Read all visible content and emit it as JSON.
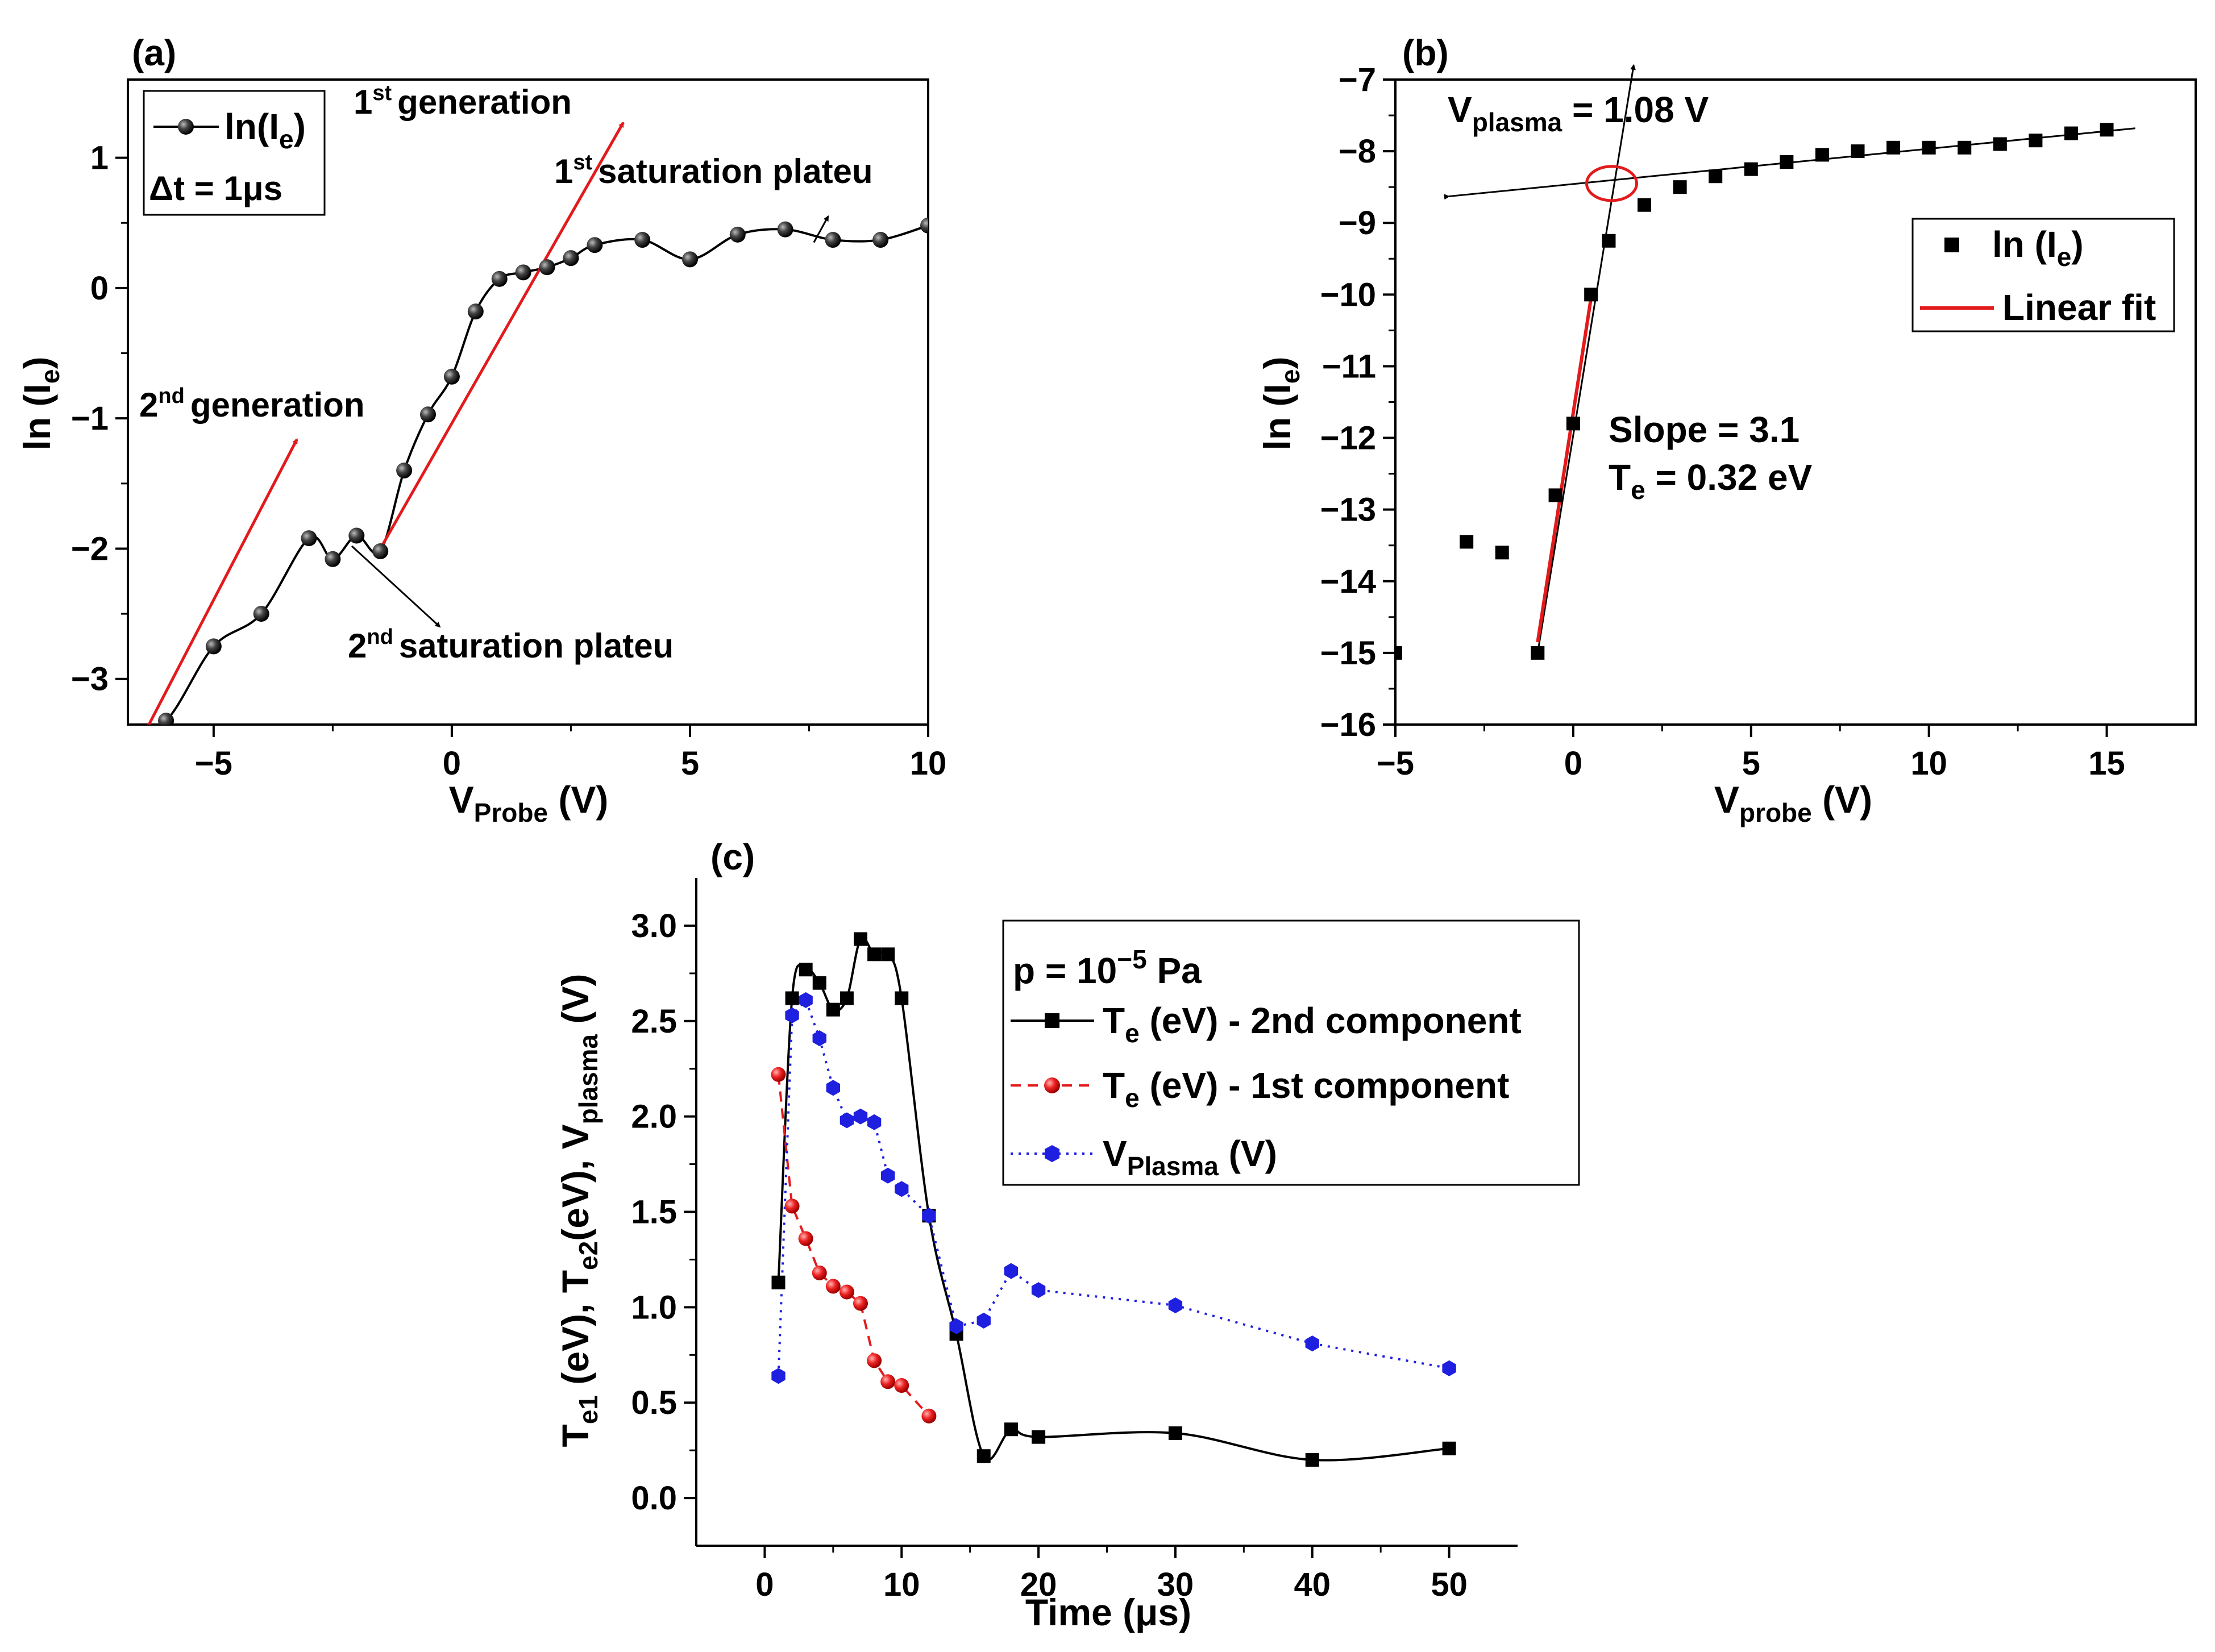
{
  "chart_data": [
    {
      "id": "a",
      "type": "line",
      "panel_label": "(a)",
      "title": "",
      "xlabel": {
        "main": "V",
        "sub": "Probe",
        "unit": " (V)"
      },
      "ylabel": {
        "main": "ln (I",
        "sub": "e",
        "close": ")"
      },
      "xlim": [
        -6.8,
        10
      ],
      "ylim": [
        -3.35,
        1.6
      ],
      "xticks": [
        -5,
        0,
        5,
        10
      ],
      "yticks": [
        -3,
        -2,
        -1,
        0,
        1
      ],
      "x_tick_labels": [
        "−5",
        "0",
        "5",
        "10"
      ],
      "y_tick_labels": [
        "−3",
        "−2",
        "−1",
        "0",
        "1"
      ],
      "series": [
        {
          "name": "ln(I_e)",
          "marker": "sphere",
          "color": "#000000",
          "x": [
            -6,
            -5,
            -4,
            -3,
            -2.5,
            -2,
            -1.5,
            -1,
            -0.5,
            0,
            0.5,
            1,
            1.5,
            2,
            2.5,
            3,
            4,
            5,
            6,
            7,
            8,
            9,
            10
          ],
          "y": [
            -3.32,
            -2.75,
            -2.5,
            -1.92,
            -2.08,
            -1.9,
            -2.02,
            -1.4,
            -0.97,
            -0.68,
            -0.18,
            0.07,
            0.12,
            0.16,
            0.23,
            0.33,
            0.37,
            0.22,
            0.41,
            0.45,
            0.37,
            0.37,
            0.48
          ]
        }
      ],
      "legend": {
        "line1_main": "ln(I",
        "line1_sub": "e",
        "line1_close": ")",
        "line2": "Δt = 1μs",
        "position": "top-left"
      },
      "annotations": {
        "gen1_sup": "st",
        "gen1_text": "generation",
        "gen1_num": "1",
        "plat1_num": "1",
        "plat1_sup": "st",
        "plat1_text": "saturation plateu",
        "gen2_num": "2",
        "gen2_sup": "nd",
        "gen2_text": "generation",
        "plat2_num": "2",
        "plat2_sup": "nd",
        "plat2_text": "saturation plateu"
      }
    },
    {
      "id": "b",
      "type": "scatter",
      "panel_label": "(b)",
      "xlabel": {
        "main": "V",
        "sub": "probe",
        "unit": " (V)"
      },
      "ylabel": {
        "main": "ln (I",
        "sub": "e",
        "close": ")"
      },
      "xlim": [
        -5,
        17.5
      ],
      "ylim": [
        -16,
        -7
      ],
      "xticks": [
        -5,
        0,
        5,
        10,
        15
      ],
      "yticks": [
        -16,
        -15,
        -14,
        -13,
        -12,
        -11,
        -10,
        -9,
        -8,
        -7
      ],
      "x_tick_labels": [
        "−5",
        "0",
        "5",
        "10",
        "15"
      ],
      "y_tick_labels": [
        "−16",
        "−15",
        "−14",
        "−13",
        "−12",
        "−11",
        "−10",
        "−9",
        "−8",
        "−7"
      ],
      "series": [
        {
          "name": "ln (I_e)",
          "marker": "square",
          "color": "#000000",
          "x": [
            -5,
            -3,
            -2,
            -1,
            -0.5,
            0,
            0.5,
            1,
            2,
            3,
            4,
            5,
            6,
            7,
            8,
            9,
            10,
            11,
            12,
            13,
            14,
            15
          ],
          "y": [
            -15,
            -13.45,
            -13.6,
            -15,
            -12.8,
            -11.8,
            -10,
            -9.25,
            -8.75,
            -8.5,
            -8.35,
            -8.25,
            -8.15,
            -8.05,
            -8.0,
            -7.95,
            -7.95,
            -7.95,
            -7.9,
            -7.85,
            -7.75,
            -7.7
          ]
        },
        {
          "name": "Linear fit",
          "type": "line",
          "color": "#e31a1c",
          "x": [
            -1,
            0.5
          ],
          "y": [
            -14.85,
            -10.05
          ]
        }
      ],
      "guide_lines": {
        "steep": {
          "x": [
            -1,
            1.7
          ],
          "y": [
            -15,
            -6.8
          ]
        },
        "flat": {
          "x": [
            -3.5,
            15.8
          ],
          "y": [
            -8.63,
            -7.68
          ]
        },
        "intersection": {
          "x": 1.08,
          "y": -8.45
        }
      },
      "legend": {
        "item1_main": "ln (I",
        "item1_sub": "e",
        "item1_close": ")",
        "item2": "Linear fit",
        "position": "top-right"
      },
      "annotations": {
        "vplasma_main": "V",
        "vplasma_sub": "plasma",
        "vplasma_val": " = 1.08 V",
        "slope": "Slope = 3.1",
        "te_main": "T",
        "te_sub": "e",
        "te_val": " = 0.32 eV"
      }
    },
    {
      "id": "c",
      "type": "line",
      "panel_label": "(c)",
      "xlabel": {
        "main": "Time (μs)"
      },
      "ylabel": {
        "main": "T",
        "sub1": "e1",
        "mid1": " (eV), T",
        "sub2": "e2",
        "mid2": "(eV), V",
        "sub3": "plasma",
        "end": " (V)"
      },
      "xlim": [
        -5,
        55
      ],
      "ylim": [
        -0.25,
        3.25
      ],
      "xticks": [
        0,
        10,
        20,
        30,
        40,
        50
      ],
      "yticks": [
        0.0,
        0.5,
        1.0,
        1.5,
        2.0,
        2.5,
        3.0
      ],
      "x_tick_labels": [
        "0",
        "10",
        "20",
        "30",
        "40",
        "50"
      ],
      "y_tick_labels": [
        "0.0",
        "0.5",
        "1.0",
        "1.5",
        "2.0",
        "2.5",
        "3.0"
      ],
      "series": [
        {
          "name": "T_e (eV) - 2nd component",
          "marker": "square",
          "line": "solid",
          "color": "#000000",
          "x": [
            1,
            2,
            3,
            4,
            5,
            6,
            7,
            8,
            9,
            10,
            12,
            14,
            16,
            18,
            20,
            30,
            40,
            50
          ],
          "y": [
            1.13,
            2.62,
            2.77,
            2.7,
            2.56,
            2.62,
            2.93,
            2.85,
            2.85,
            2.62,
            1.48,
            0.86,
            0.22,
            0.36,
            0.32,
            0.34,
            0.2,
            0.26
          ]
        },
        {
          "name": "T_e (eV) - 1st component",
          "marker": "circle",
          "line": "dashed",
          "color": "#e31a1c",
          "x": [
            1,
            2,
            3,
            4,
            5,
            6,
            7,
            8,
            9,
            10,
            12
          ],
          "y": [
            2.22,
            1.53,
            1.36,
            1.18,
            1.11,
            1.08,
            1.02,
            0.72,
            0.61,
            0.59,
            0.43
          ]
        },
        {
          "name": "V_Plasma (V)",
          "marker": "hexagon",
          "line": "dotted",
          "color": "#1f1fe0",
          "x": [
            1,
            2,
            3,
            4,
            5,
            6,
            7,
            8,
            9,
            10,
            12,
            14,
            16,
            18,
            20,
            30,
            40,
            50
          ],
          "y": [
            0.64,
            2.53,
            2.61,
            2.41,
            2.15,
            1.98,
            2.0,
            1.97,
            1.69,
            1.62,
            1.48,
            0.9,
            0.93,
            1.19,
            1.09,
            1.01,
            0.81,
            0.68
          ]
        }
      ],
      "legend": {
        "title_main": "p = 10",
        "title_sup": "−5",
        "title_end": " Pa",
        "item1_main": "T",
        "item1_sub": "e",
        "item1_end": " (eV) - 2nd component",
        "item2_main": "T",
        "item2_sub": "e",
        "item2_end": " (eV) - 1st component",
        "item3_main": "V",
        "item3_sub": "Plasma",
        "item3_end": " (V)",
        "position": "top-right"
      }
    }
  ]
}
